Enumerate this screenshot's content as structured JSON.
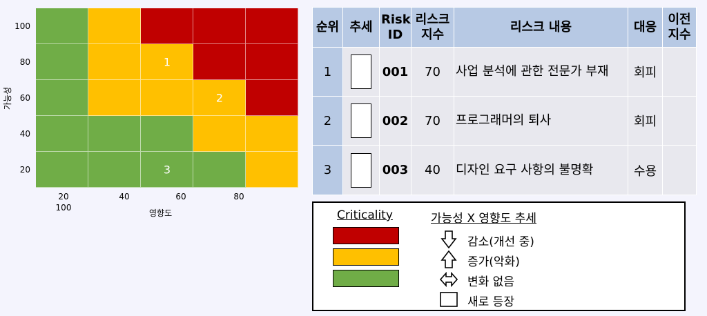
{
  "heatmap": {
    "y_ticks": [
      "100",
      "80",
      "60",
      "40",
      "20"
    ],
    "x_ticks": [
      "20",
      "40",
      "60",
      "80"
    ],
    "x_tick_extra": "100",
    "x_title": "영향도",
    "y_title": "가능성",
    "colors": {
      "red": "#c00000",
      "yellow": "#ffc000",
      "green": "#70ad47"
    },
    "grid": [
      [
        "green",
        "yellow",
        "red",
        "red",
        "red"
      ],
      [
        "green",
        "yellow",
        "yellow",
        "red",
        "red"
      ],
      [
        "green",
        "yellow",
        "yellow",
        "yellow",
        "red"
      ],
      [
        "green",
        "green",
        "green",
        "yellow",
        "yellow"
      ],
      [
        "green",
        "green",
        "green",
        "green",
        "yellow"
      ]
    ],
    "markers": [
      {
        "label": "1",
        "row": 1,
        "col": 2
      },
      {
        "label": "2",
        "row": 2,
        "col": 3
      },
      {
        "label": "3",
        "row": 4,
        "col": 2
      }
    ]
  },
  "table": {
    "headers": {
      "rank": "순위",
      "trend": "추세",
      "risk_id_line1": "Risk",
      "risk_id_line2": "ID",
      "index_line1": "리스크",
      "index_line2": "지수",
      "content": "리스크 내용",
      "response": "대응",
      "prev_line1": "이전",
      "prev_line2": "지수"
    },
    "rows": [
      {
        "rank": "1",
        "trend": "new-icon",
        "id": "001",
        "index": "70",
        "content": "사업 분석에 관한 전문가 부재",
        "response": "회피",
        "prev": ""
      },
      {
        "rank": "2",
        "trend": "new-icon",
        "id": "002",
        "index": "70",
        "content": "프로그래머의 퇴사",
        "response": "회피",
        "prev": ""
      },
      {
        "rank": "3",
        "trend": "new-icon",
        "id": "003",
        "index": "40",
        "content": "디자인 요구 사항의 불명확",
        "response": "수용",
        "prev": ""
      }
    ]
  },
  "legend": {
    "criticality_title": "Criticality",
    "criticality_colors": [
      "#c00000",
      "#ffc000",
      "#70ad47"
    ],
    "trend_title": "가능성 X 영향도 추세",
    "trend_items": [
      {
        "icon": "arrow-down-icon",
        "label": "감소(개선 중)"
      },
      {
        "icon": "arrow-up-icon",
        "label": "증가(악화)"
      },
      {
        "icon": "arrow-left-right-icon",
        "label": "변화 없음"
      },
      {
        "icon": "new-icon",
        "label": "새로 등장"
      }
    ]
  }
}
